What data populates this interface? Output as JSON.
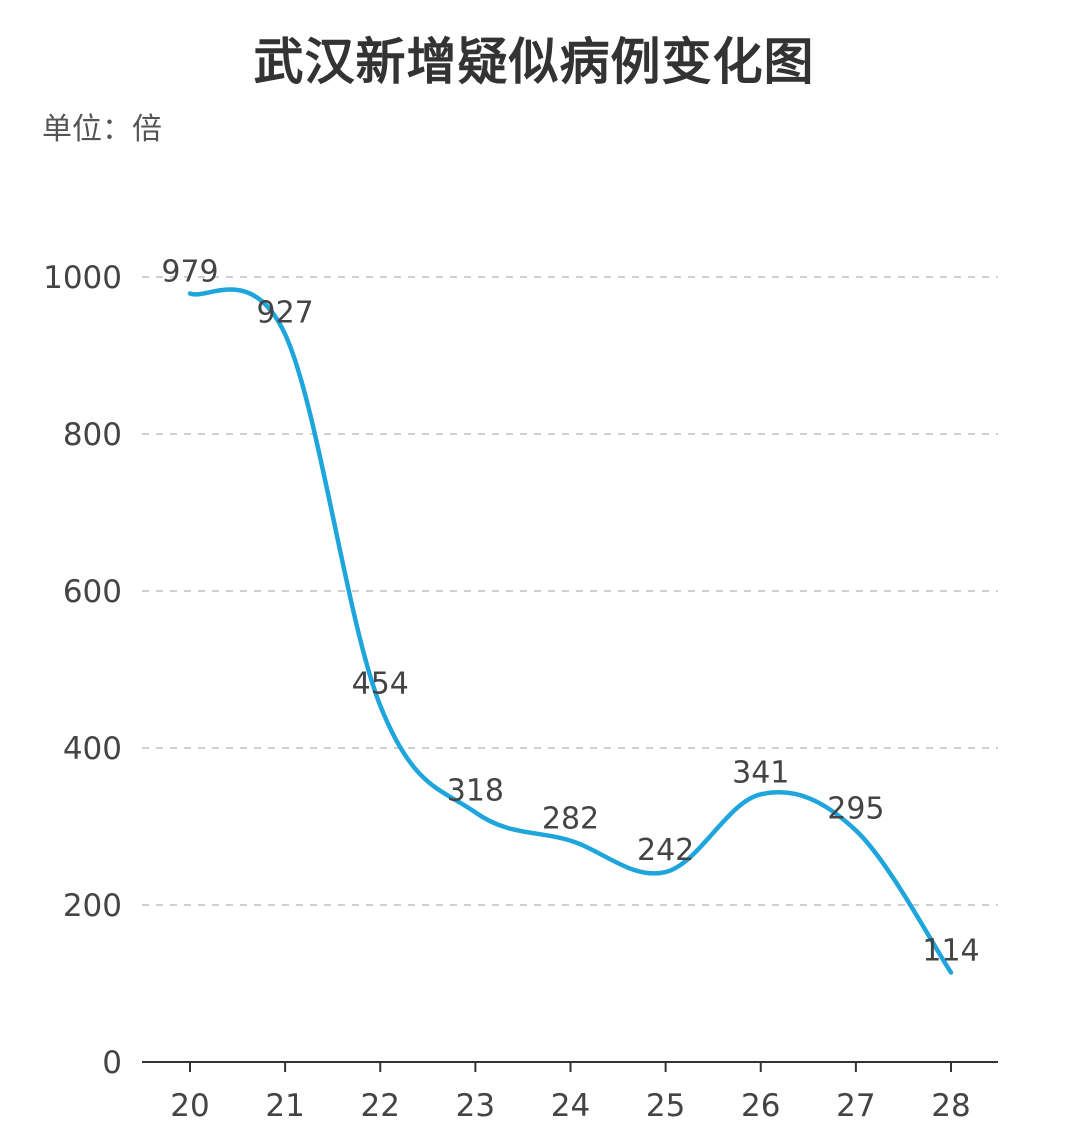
{
  "chart_data": {
    "type": "line",
    "title": "武汉新增疑似病例变化图",
    "unit": "单位：倍",
    "xlabel": "",
    "ylabel": "",
    "categories": [
      "20",
      "21",
      "22",
      "23",
      "24",
      "25",
      "26",
      "27",
      "28"
    ],
    "series": [
      {
        "values": [
          979,
          927,
          454,
          318,
          282,
          242,
          341,
          295,
          114
        ],
        "color": "#1ea6dc"
      }
    ],
    "ylim": [
      0,
      1000
    ],
    "yticks": [
      0,
      200,
      400,
      600,
      800,
      1000
    ],
    "grid": true,
    "smooth": true,
    "data_labels": true
  }
}
